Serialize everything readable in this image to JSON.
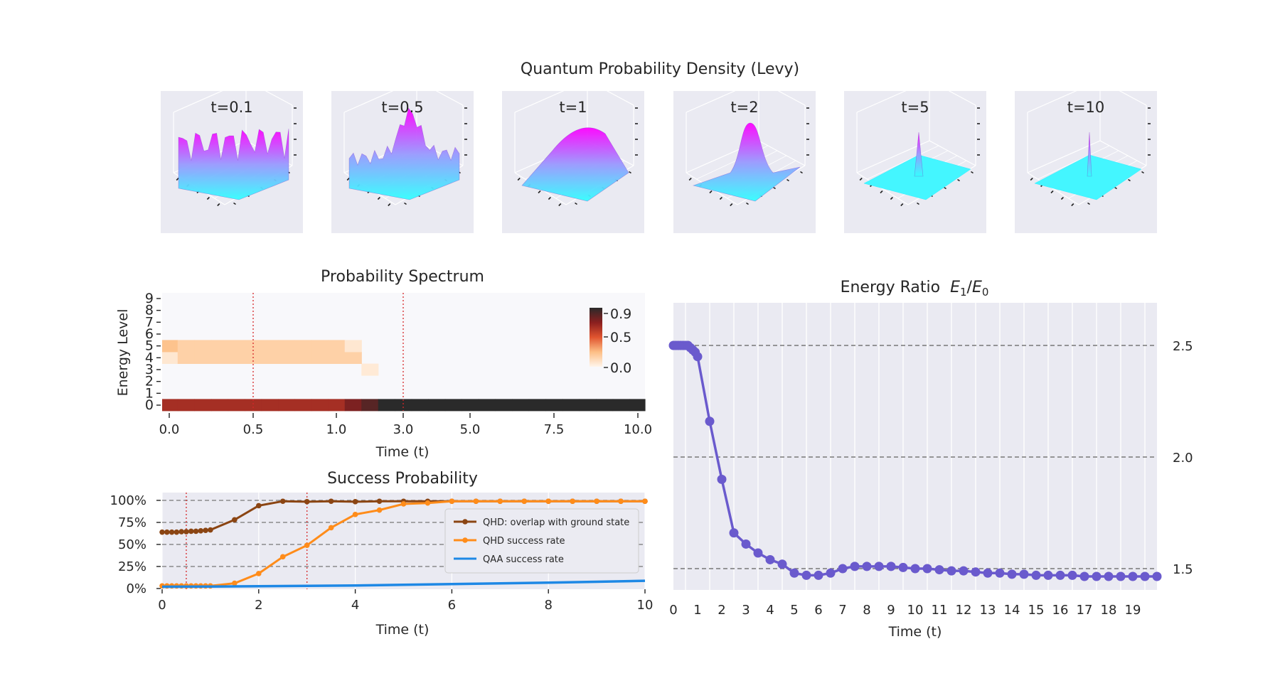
{
  "figure": {
    "suptitle": "Quantum Probability Density (Levy)"
  },
  "colors": {
    "panel_bg": "#eaeaf2",
    "grid": "#ffffff",
    "qhd_overlap": "#8b4513",
    "qhd_success": "#ff8c1a",
    "qaa_success": "#1e88e5",
    "energy_line": "#6a5acd",
    "dotted_marker": "#d62728",
    "dashed_ref": "#777777"
  },
  "chart_data": [
    {
      "type": "surface",
      "title": "Quantum Probability Density (Levy)",
      "panels": [
        {
          "label": "t=0.1",
          "shape": "rugged"
        },
        {
          "label": "t=0.5",
          "shape": "rugged-peaked"
        },
        {
          "label": "t=1",
          "shape": "ridge"
        },
        {
          "label": "t=2",
          "shape": "broad-peak"
        },
        {
          "label": "t=5",
          "shape": "sharp-spike"
        },
        {
          "label": "t=10",
          "shape": "needle-spike"
        }
      ],
      "colormap": "cool"
    },
    {
      "type": "heatmap",
      "title": "Probability Spectrum",
      "xlabel": "Time (t)",
      "ylabel": "Energy Level",
      "x_ticks": [
        "0.0",
        "0.5",
        "1.0",
        "3.0",
        "5.0",
        "7.5",
        "10.0"
      ],
      "y_ticks": [
        "0",
        "1",
        "2",
        "3",
        "4",
        "5",
        "6",
        "7",
        "8",
        "9"
      ],
      "colorbar_ticks": [
        "0.9",
        "0.5",
        "0.0"
      ],
      "colorbar_range": [
        0.0,
        0.95
      ],
      "time_columns": [
        0.0,
        0.1,
        0.2,
        0.3,
        0.4,
        0.5,
        0.6,
        0.7,
        0.8,
        0.9,
        1.0,
        1.5,
        2.0,
        2.5,
        3.0,
        3.5,
        4.0,
        4.5,
        5.0,
        5.5,
        6.0,
        6.5,
        7.0,
        7.5,
        8.0,
        8.5,
        9.0,
        9.5,
        10.0
      ],
      "rows": [
        {
          "level": 0,
          "values": [
            0.64,
            0.64,
            0.64,
            0.64,
            0.64,
            0.64,
            0.64,
            0.64,
            0.64,
            0.64,
            0.64,
            0.75,
            0.84,
            0.96,
            0.97,
            0.97,
            0.97,
            0.97,
            0.97,
            0.97,
            0.97,
            0.97,
            0.97,
            0.97,
            0.97,
            0.97,
            0.97,
            0.97,
            0.97
          ]
        },
        {
          "level": 3,
          "values": [
            0,
            0,
            0,
            0,
            0,
            0,
            0,
            0,
            0,
            0,
            0,
            0,
            0.05,
            0,
            0,
            0,
            0,
            0,
            0,
            0,
            0,
            0,
            0,
            0,
            0,
            0,
            0,
            0,
            0
          ]
        },
        {
          "level": 4,
          "values": [
            0.06,
            0.16,
            0.16,
            0.16,
            0.16,
            0.16,
            0.16,
            0.16,
            0.16,
            0.16,
            0.16,
            0.16,
            0,
            0,
            0,
            0,
            0,
            0,
            0,
            0,
            0,
            0,
            0,
            0,
            0,
            0,
            0,
            0,
            0
          ]
        },
        {
          "level": 5,
          "values": [
            0.22,
            0.16,
            0.16,
            0.16,
            0.16,
            0.16,
            0.16,
            0.16,
            0.16,
            0.16,
            0.16,
            0.06,
            0,
            0,
            0,
            0,
            0,
            0,
            0,
            0,
            0,
            0,
            0,
            0,
            0,
            0,
            0,
            0,
            0
          ]
        }
      ],
      "vlines_at_tick": [
        "0.5",
        "3.0"
      ]
    },
    {
      "type": "line",
      "title": "Success Probability",
      "xlabel": "Time (t)",
      "xlim": [
        0,
        10
      ],
      "ylim": [
        0,
        1
      ],
      "x_ticks": [
        "0",
        "2",
        "4",
        "6",
        "8",
        "10"
      ],
      "y_ticks": [
        "0%",
        "25%",
        "50%",
        "75%",
        "100%"
      ],
      "hlines": [
        0.25,
        0.5,
        0.75,
        1.0
      ],
      "vlines": [
        0.5,
        3.0
      ],
      "legend_position": "center-right",
      "series": [
        {
          "name": "QHD: overlap with ground state",
          "x": [
            0,
            0.1,
            0.2,
            0.3,
            0.4,
            0.5,
            0.6,
            0.7,
            0.8,
            0.9,
            1.0,
            1.5,
            2.0,
            2.5,
            3.0,
            3.5,
            4.0,
            4.5,
            5.0,
            5.5,
            6.0,
            6.5,
            7.0,
            7.5,
            8.0,
            8.5,
            9.0,
            9.5,
            10.0
          ],
          "y": [
            0.64,
            0.64,
            0.64,
            0.64,
            0.645,
            0.645,
            0.65,
            0.65,
            0.655,
            0.66,
            0.665,
            0.78,
            0.94,
            0.99,
            0.985,
            0.99,
            0.985,
            0.99,
            0.99,
            0.99,
            0.99,
            0.99,
            0.99,
            0.99,
            0.99,
            0.99,
            0.99,
            0.99,
            0.99
          ]
        },
        {
          "name": "QHD success rate",
          "x": [
            0,
            0.1,
            0.2,
            0.3,
            0.4,
            0.5,
            0.6,
            0.7,
            0.8,
            0.9,
            1.0,
            1.5,
            2.0,
            2.5,
            3.0,
            3.5,
            4.0,
            4.5,
            5.0,
            5.5,
            6.0,
            6.5,
            7.0,
            7.5,
            8.0,
            8.5,
            9.0,
            9.5,
            10.0
          ],
          "y": [
            0.03,
            0.03,
            0.03,
            0.03,
            0.03,
            0.03,
            0.03,
            0.03,
            0.03,
            0.03,
            0.03,
            0.06,
            0.17,
            0.36,
            0.49,
            0.69,
            0.84,
            0.89,
            0.96,
            0.97,
            0.99,
            0.99,
            0.99,
            0.99,
            0.99,
            0.99,
            0.99,
            0.99,
            0.99
          ]
        },
        {
          "name": "QAA success rate",
          "x": [
            0,
            1,
            2,
            3,
            4,
            5,
            6,
            7,
            8,
            9,
            10
          ],
          "y": [
            0.02,
            0.022,
            0.026,
            0.03,
            0.035,
            0.042,
            0.05,
            0.058,
            0.067,
            0.077,
            0.088
          ]
        }
      ]
    },
    {
      "type": "line",
      "title": "Energy Ratio  E1/E0",
      "title_main": "Energy Ratio",
      "title_math": {
        "base1": "E",
        "sub1": "1",
        "slash": "/",
        "base2": "E",
        "sub2": "0"
      },
      "xlabel": "Time (t)",
      "xlim": [
        0,
        20
      ],
      "ylim": [
        1.4,
        2.68
      ],
      "x_ticks": [
        "0",
        "1",
        "2",
        "3",
        "4",
        "5",
        "6",
        "7",
        "8",
        "9",
        "10",
        "11",
        "12",
        "13",
        "14",
        "15",
        "16",
        "17",
        "18",
        "19"
      ],
      "y_ticks": [
        "1.5",
        "2.0",
        "2.5"
      ],
      "hlines": [
        1.5,
        2.0,
        2.5
      ],
      "series": [
        {
          "name": "",
          "x": [
            0,
            0.1,
            0.2,
            0.3,
            0.4,
            0.5,
            0.6,
            0.7,
            0.8,
            0.9,
            1.0,
            1.5,
            2.0,
            2.5,
            3.0,
            3.5,
            4.0,
            4.5,
            5.0,
            5.5,
            6.0,
            6.5,
            7.0,
            7.5,
            8.0,
            8.5,
            9.0,
            9.5,
            10.0,
            10.5,
            11.0,
            11.5,
            12.0,
            12.5,
            13.0,
            13.5,
            14.0,
            14.5,
            15.0,
            15.5,
            16.0,
            16.5,
            17.0,
            17.5,
            18.0,
            18.5,
            19.0,
            19.5,
            20.0
          ],
          "y": [
            2.5,
            2.5,
            2.5,
            2.5,
            2.5,
            2.5,
            2.5,
            2.49,
            2.48,
            2.47,
            2.45,
            2.16,
            1.9,
            1.66,
            1.61,
            1.57,
            1.54,
            1.52,
            1.48,
            1.47,
            1.47,
            1.48,
            1.5,
            1.51,
            1.51,
            1.51,
            1.51,
            1.505,
            1.5,
            1.5,
            1.495,
            1.49,
            1.49,
            1.485,
            1.48,
            1.48,
            1.475,
            1.475,
            1.47,
            1.47,
            1.47,
            1.47,
            1.465,
            1.465,
            1.465,
            1.465,
            1.465,
            1.465,
            1.465
          ]
        }
      ]
    }
  ]
}
